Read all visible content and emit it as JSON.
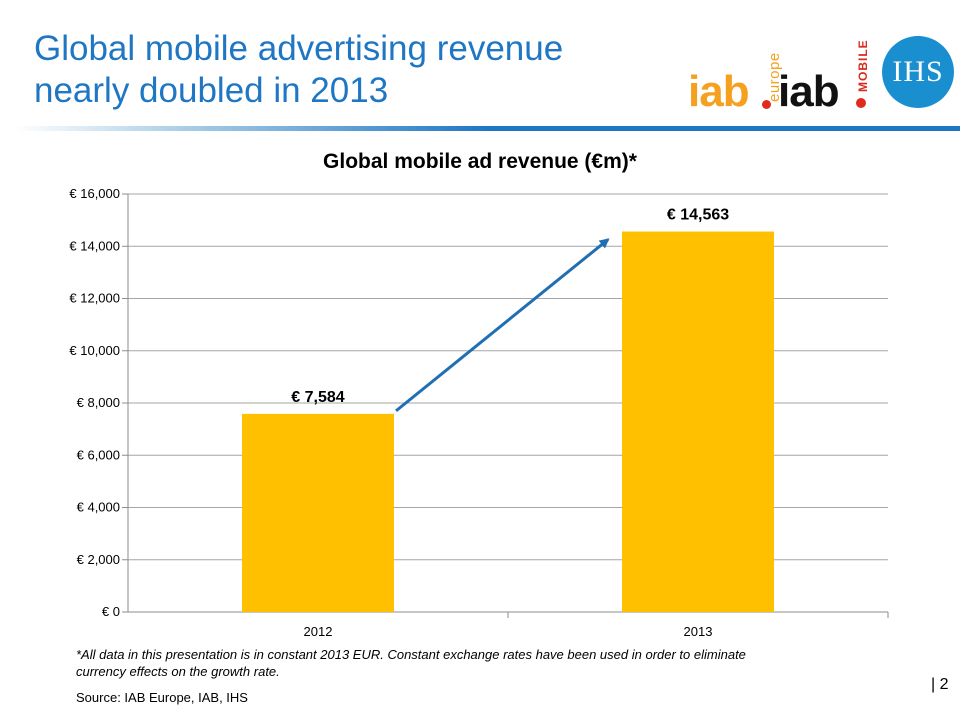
{
  "slide": {
    "title_line1": "Global mobile advertising revenue",
    "title_line2": "nearly doubled in 2013",
    "page_number": "| 2"
  },
  "logos": {
    "iab_europe": "iab",
    "europe_word": "europe",
    "iab_mobile": "iab",
    "mobile_word": "MOBILE",
    "ihs": "IHS"
  },
  "chart_data": {
    "type": "bar",
    "title": "Global mobile ad revenue (€m)*",
    "categories": [
      "2012",
      "2013"
    ],
    "values": [
      7584,
      14563
    ],
    "data_labels": [
      "€ 7,584",
      "€ 14,563"
    ],
    "y_ticks": [
      0,
      2000,
      4000,
      6000,
      8000,
      10000,
      12000,
      14000,
      16000
    ],
    "y_tick_labels": [
      "€ 0",
      "€ 2,000",
      "€ 4,000",
      "€ 6,000",
      "€ 8,000",
      "€ 10,000",
      "€ 12,000",
      "€ 14,000",
      "€ 16,000"
    ],
    "ylim": [
      0,
      16000
    ],
    "xlabel": "",
    "ylabel": "",
    "grid": true,
    "bar_color": "#ffc000",
    "arrow_color": "#1f6fb2",
    "annotation": "arrow from 2012 bar to 2013 bar"
  },
  "notes": {
    "footnote": "*All data in this presentation is in constant 2013 EUR. Constant exchange rates have been used in order to eliminate currency effects on the growth rate.",
    "source": "Source: IAB Europe, IAB, IHS"
  }
}
